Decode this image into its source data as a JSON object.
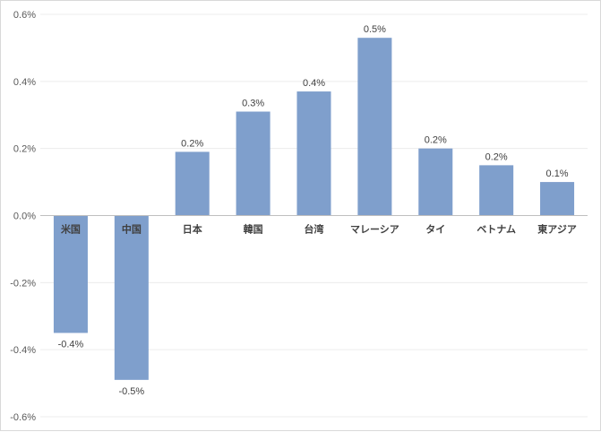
{
  "chart_data": {
    "type": "bar",
    "title": "",
    "xlabel": "",
    "ylabel": "",
    "categories": [
      "米国",
      "中国",
      "日本",
      "韓国",
      "台湾",
      "マレーシア",
      "タイ",
      "ベトナム",
      "東アジア"
    ],
    "values": [
      -0.35,
      -0.49,
      0.19,
      0.31,
      0.37,
      0.53,
      0.2,
      0.15,
      0.1
    ],
    "data_labels": [
      "-0.4%",
      "-0.5%",
      "0.2%",
      "0.3%",
      "0.4%",
      "0.5%",
      "0.2%",
      "0.2%",
      "0.1%"
    ],
    "ylim": [
      -0.6,
      0.6
    ],
    "yticks": [
      0.6,
      0.4,
      0.2,
      0.0,
      -0.2,
      -0.4,
      -0.6
    ],
    "ytick_labels": [
      "0.6%",
      "0.4%",
      "0.2%",
      "0.0%",
      "-0.2%",
      "-0.4%",
      "-0.6%"
    ],
    "grid": true,
    "legend": "none",
    "bar_color": "#7f9fcc",
    "grid_color": "#ececec",
    "axis_color": "#bfbfbf"
  }
}
